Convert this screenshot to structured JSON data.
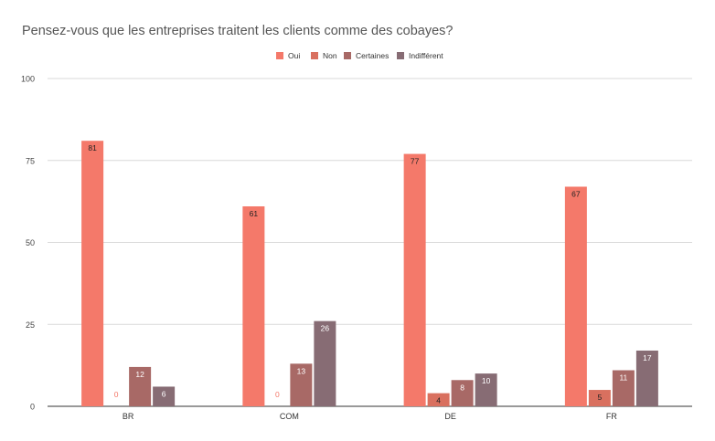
{
  "chart_data": {
    "type": "bar",
    "title": "Pensez-vous que les entreprises traitent les clients comme des cobayes?",
    "categories": [
      "BR",
      "COM",
      "DE",
      "FR"
    ],
    "series": [
      {
        "name": "Oui",
        "color": "#f4796a",
        "values": [
          81,
          61,
          77,
          67
        ]
      },
      {
        "name": "Non",
        "color": "#d9705f",
        "values": [
          0,
          0,
          4,
          5
        ]
      },
      {
        "name": "Certaines",
        "color": "#a86966",
        "values": [
          12,
          13,
          8,
          11
        ]
      },
      {
        "name": "Indifférent",
        "color": "#876c74",
        "values": [
          6,
          26,
          10,
          17
        ]
      }
    ],
    "ylim": [
      0,
      100
    ],
    "yticks": [
      0,
      25,
      50,
      75,
      100
    ],
    "grid": true,
    "legend": "top-center",
    "zero_label_color": "#f4796a"
  }
}
